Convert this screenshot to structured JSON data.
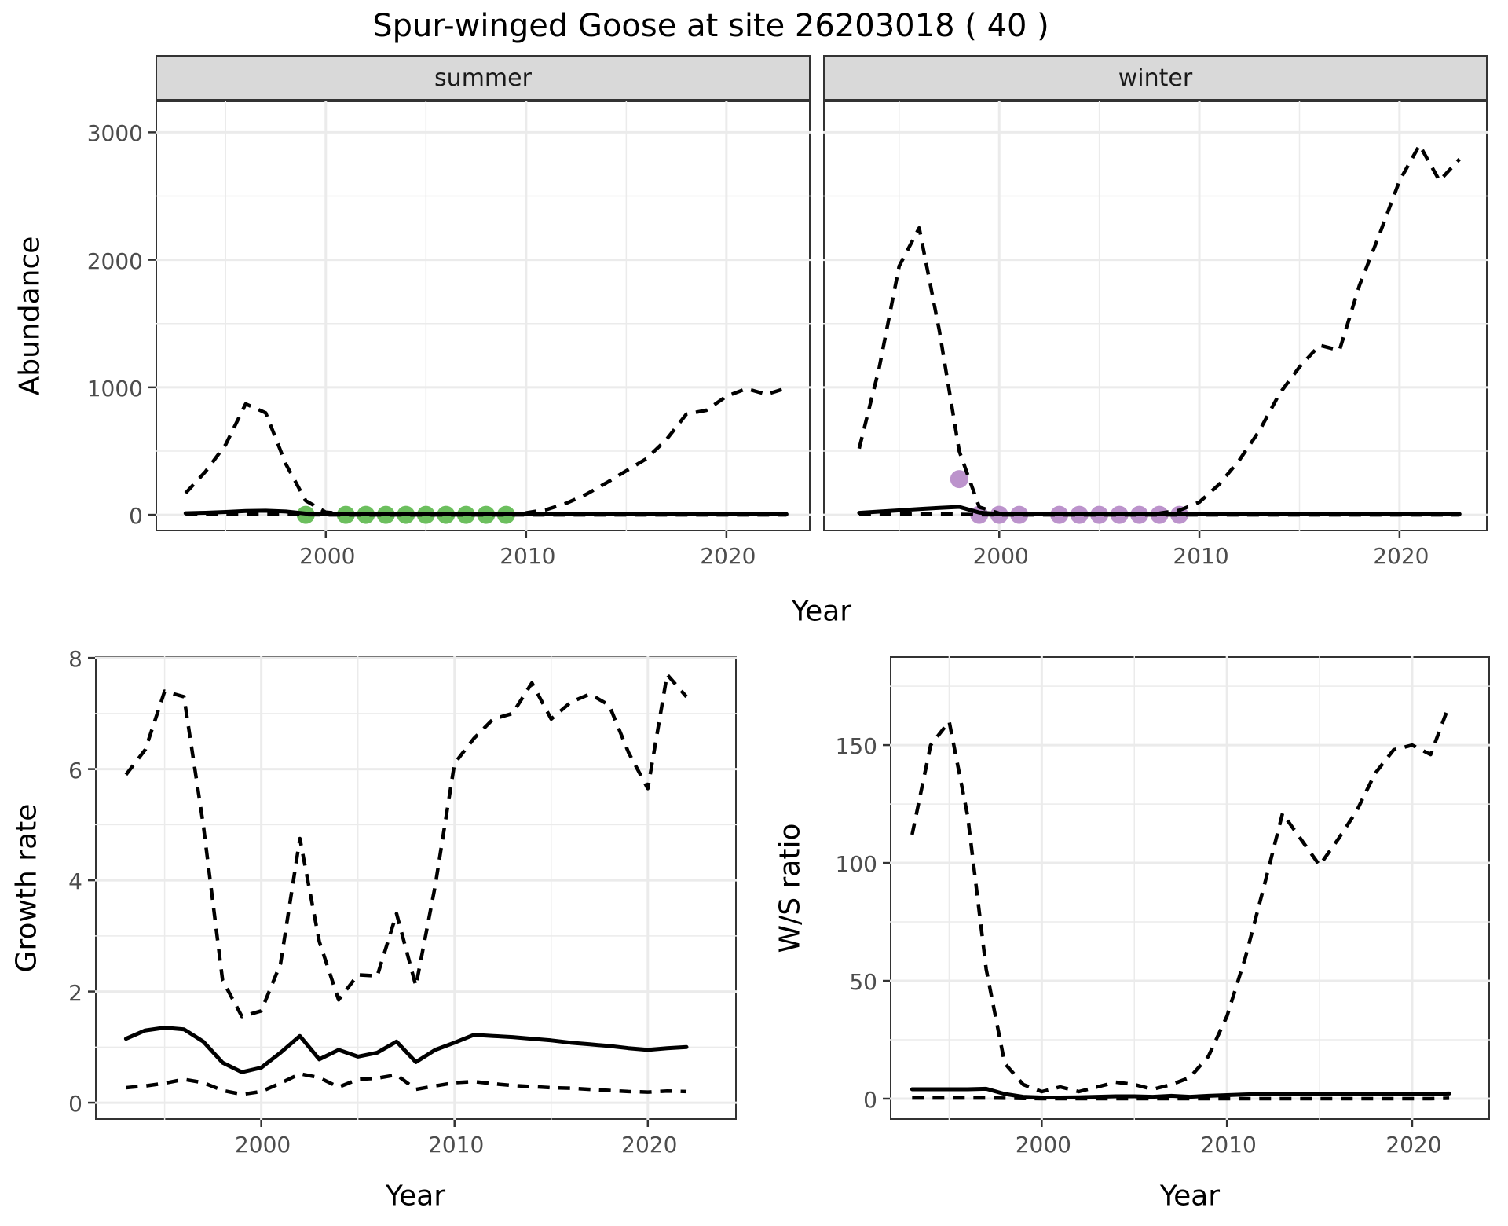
{
  "title": "Spur-winged Goose at site 26203018 ( 40 )",
  "colors": {
    "summer_points": "#6CBF5E",
    "winter_points": "#BC93CC",
    "line": "#000000",
    "strip_bg": "#D9D9D9",
    "grid": "#EBEBEB",
    "panel_border": "#333333",
    "tick_text": "#4D4D4D"
  },
  "chart_data": [
    {
      "id": "abundance-summer",
      "type": "line",
      "facet": "summer",
      "xlabel": "Year",
      "ylabel": "Abundance",
      "xlim": [
        1991.5,
        2024.2
      ],
      "ylim": [
        -129,
        3249
      ],
      "x_ticks": [
        2000,
        2010,
        2020
      ],
      "y_ticks": [
        0,
        1000,
        2000,
        3000
      ],
      "x_minor": [
        1995,
        2005,
        2015
      ],
      "y_minor": [
        500,
        1500,
        2500
      ],
      "show_y_tick_labels": true,
      "x": [
        1993,
        1994,
        1995,
        1996,
        1997,
        1998,
        1999,
        2000,
        2001,
        2002,
        2003,
        2004,
        2005,
        2006,
        2007,
        2008,
        2009,
        2010,
        2011,
        2012,
        2013,
        2014,
        2015,
        2016,
        2017,
        2018,
        2019,
        2020,
        2021,
        2022,
        2023
      ],
      "series": [
        {
          "name": "upper_ci",
          "style": "dashed",
          "y": [
            170,
            340,
            550,
            870,
            800,
            400,
            110,
            20,
            8,
            6,
            5,
            5,
            5,
            5,
            5,
            5,
            6,
            15,
            40,
            90,
            160,
            250,
            345,
            440,
            590,
            790,
            820,
            930,
            990,
            945,
            995
          ]
        },
        {
          "name": "lower_ci",
          "style": "dashed",
          "y": [
            2,
            3,
            4,
            5,
            5,
            3,
            1,
            0,
            0,
            0,
            0,
            0,
            0,
            0,
            0,
            0,
            0,
            0,
            0,
            0,
            0,
            0,
            0,
            0,
            0,
            0,
            0,
            0,
            0,
            0,
            0
          ]
        },
        {
          "name": "estimate",
          "style": "solid",
          "y": [
            12,
            16,
            22,
            30,
            32,
            26,
            10,
            5,
            4,
            4,
            4,
            4,
            4,
            4,
            4,
            4,
            4,
            5,
            5,
            5,
            5,
            5,
            5,
            5,
            5,
            5,
            5,
            5,
            5,
            5,
            5
          ]
        }
      ],
      "points": {
        "name": "observed-counts-summer",
        "color": "#6CBF5E",
        "x": [
          1999,
          2001,
          2002,
          2003,
          2004,
          2005,
          2006,
          2007,
          2008,
          2009
        ],
        "y": [
          0,
          0,
          0,
          0,
          0,
          0,
          0,
          0,
          0,
          0
        ]
      }
    },
    {
      "id": "abundance-winter",
      "type": "line",
      "facet": "winter",
      "xlabel": "Year",
      "ylabel": "Abundance",
      "xlim": [
        1991.2,
        2024.4
      ],
      "ylim": [
        -129,
        3249
      ],
      "x_ticks": [
        2000,
        2010,
        2020
      ],
      "y_ticks": [
        0,
        1000,
        2000,
        3000
      ],
      "x_minor": [
        1995,
        2005,
        2015
      ],
      "y_minor": [
        500,
        1500,
        2500
      ],
      "show_y_tick_labels": false,
      "x": [
        1993,
        1994,
        1995,
        1996,
        1997,
        1998,
        1999,
        2000,
        2001,
        2002,
        2003,
        2004,
        2005,
        2006,
        2007,
        2008,
        2009,
        2010,
        2011,
        2012,
        2013,
        2014,
        2015,
        2016,
        2017,
        2018,
        2019,
        2020,
        2021,
        2022,
        2023
      ],
      "series": [
        {
          "name": "upper_ci",
          "style": "dashed",
          "y": [
            520,
            1150,
            1950,
            2250,
            1450,
            500,
            60,
            12,
            8,
            6,
            5,
            5,
            5,
            6,
            8,
            12,
            35,
            100,
            240,
            430,
            660,
            950,
            1160,
            1330,
            1290,
            1800,
            2200,
            2620,
            2900,
            2620,
            2790
          ]
        },
        {
          "name": "lower_ci",
          "style": "dashed",
          "y": [
            3,
            4,
            5,
            6,
            6,
            4,
            1,
            0,
            0,
            0,
            0,
            0,
            0,
            0,
            0,
            0,
            0,
            0,
            0,
            0,
            0,
            0,
            0,
            0,
            0,
            0,
            0,
            0,
            0,
            0,
            0
          ]
        },
        {
          "name": "estimate",
          "style": "solid",
          "y": [
            15,
            25,
            35,
            45,
            55,
            62,
            18,
            6,
            4,
            4,
            4,
            4,
            4,
            4,
            4,
            4,
            5,
            5,
            5,
            6,
            6,
            6,
            6,
            6,
            6,
            6,
            6,
            6,
            6,
            6,
            6
          ]
        }
      ],
      "points": {
        "name": "observed-counts-winter",
        "color": "#BC93CC",
        "x": [
          1998,
          1999,
          2000,
          2001,
          2003,
          2004,
          2005,
          2006,
          2007,
          2008,
          2009
        ],
        "y": [
          280,
          0,
          0,
          0,
          0,
          0,
          0,
          0,
          0,
          0,
          0
        ]
      }
    },
    {
      "id": "growth-rate",
      "type": "line",
      "facet": null,
      "xlabel": "Year",
      "ylabel": "Growth rate",
      "xlim": [
        1991.4,
        2024.6
      ],
      "ylim": [
        -0.31,
        8.03
      ],
      "x_ticks": [
        2000,
        2010,
        2020
      ],
      "y_ticks": [
        0,
        2,
        4,
        6,
        8
      ],
      "x_minor": [
        1995,
        2005,
        2015
      ],
      "y_minor": [
        1,
        3,
        5,
        7
      ],
      "show_y_tick_labels": true,
      "x": [
        1993,
        1994,
        1995,
        1996,
        1997,
        1998,
        1999,
        2000,
        2001,
        2002,
        2003,
        2004,
        2005,
        2006,
        2007,
        2008,
        2009,
        2010,
        2011,
        2012,
        2013,
        2014,
        2015,
        2016,
        2017,
        2018,
        2019,
        2020,
        2021,
        2022
      ],
      "series": [
        {
          "name": "upper_ci",
          "style": "dashed",
          "y": [
            5.9,
            6.35,
            7.4,
            7.3,
            5.0,
            2.2,
            1.55,
            1.65,
            2.5,
            4.75,
            2.9,
            1.85,
            2.3,
            2.28,
            3.4,
            2.1,
            3.9,
            6.1,
            6.55,
            6.9,
            7.0,
            7.55,
            6.9,
            7.2,
            7.35,
            7.15,
            6.3,
            5.65,
            7.7,
            7.3
          ]
        },
        {
          "name": "lower_ci",
          "style": "dashed",
          "y": [
            0.27,
            0.3,
            0.35,
            0.42,
            0.36,
            0.22,
            0.15,
            0.2,
            0.35,
            0.52,
            0.45,
            0.28,
            0.42,
            0.44,
            0.5,
            0.24,
            0.3,
            0.36,
            0.38,
            0.34,
            0.31,
            0.29,
            0.27,
            0.26,
            0.24,
            0.22,
            0.2,
            0.19,
            0.21,
            0.2
          ]
        },
        {
          "name": "estimate",
          "style": "solid",
          "y": [
            1.15,
            1.3,
            1.35,
            1.32,
            1.1,
            0.72,
            0.55,
            0.63,
            0.9,
            1.2,
            0.78,
            0.95,
            0.83,
            0.9,
            1.1,
            0.73,
            0.95,
            1.08,
            1.22,
            1.2,
            1.18,
            1.15,
            1.12,
            1.08,
            1.05,
            1.02,
            0.98,
            0.95,
            0.98,
            1.0
          ]
        }
      ],
      "points": null
    },
    {
      "id": "ws-ratio",
      "type": "line",
      "facet": null,
      "xlabel": "Year",
      "ylabel": "W/S ratio",
      "xlim": [
        1991.8,
        2024.2
      ],
      "ylim": [
        -9,
        187.7
      ],
      "x_ticks": [
        2000,
        2010,
        2020
      ],
      "y_ticks": [
        0,
        50,
        100,
        150
      ],
      "x_minor": [
        1995,
        2005,
        2015
      ],
      "y_minor": [
        25,
        75,
        125,
        175
      ],
      "show_y_tick_labels": true,
      "x": [
        1993,
        1994,
        1995,
        1996,
        1997,
        1998,
        1999,
        2000,
        2001,
        2002,
        2003,
        2004,
        2005,
        2006,
        2007,
        2008,
        2009,
        2010,
        2011,
        2012,
        2013,
        2014,
        2015,
        2016,
        2017,
        2018,
        2019,
        2020,
        2021,
        2022
      ],
      "series": [
        {
          "name": "upper_ci",
          "style": "dashed",
          "y": [
            112,
            150,
            160,
            120,
            55,
            15,
            6,
            3,
            5,
            3,
            5,
            7,
            6,
            4,
            6,
            9,
            18,
            35,
            60,
            90,
            121,
            110,
            99,
            110,
            122,
            138,
            148,
            150,
            146,
            167
          ]
        },
        {
          "name": "lower_ci",
          "style": "dashed",
          "y": [
            0.3,
            0.3,
            0.3,
            0.3,
            0.3,
            0.2,
            0.1,
            0,
            0,
            0,
            0,
            0,
            0,
            0,
            0,
            0,
            0,
            0,
            0,
            0,
            0,
            0,
            0,
            0,
            0,
            0,
            0,
            0,
            0,
            0.2
          ]
        },
        {
          "name": "estimate",
          "style": "solid",
          "y": [
            4,
            4,
            4,
            4,
            4.2,
            2,
            0.8,
            0.5,
            0.5,
            0.6,
            0.8,
            1,
            1,
            0.8,
            1.2,
            0.8,
            1.2,
            1.5,
            1.8,
            2,
            2,
            2,
            2,
            2,
            2,
            2,
            2,
            2,
            2,
            2.2
          ]
        }
      ],
      "points": null
    }
  ]
}
